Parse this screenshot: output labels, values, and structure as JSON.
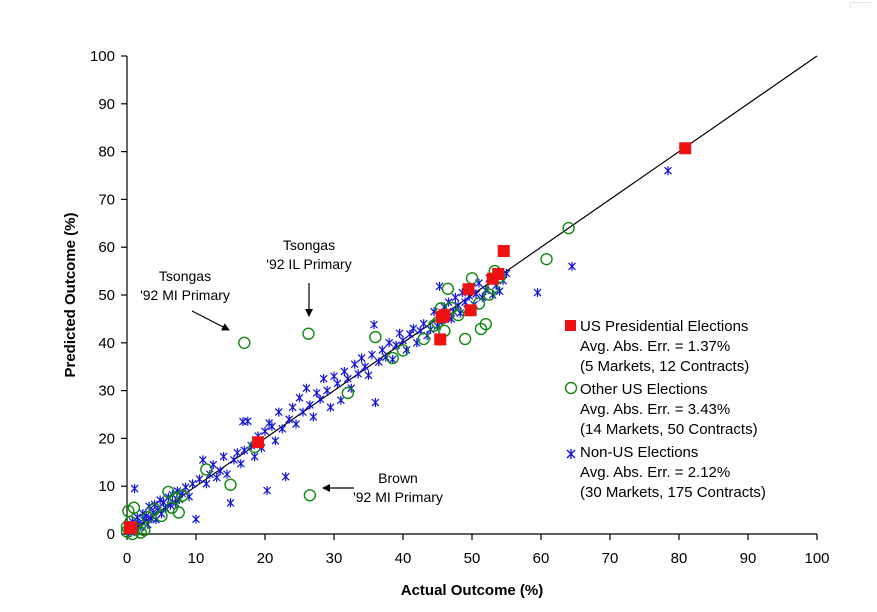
{
  "chart_data": {
    "type": "scatter",
    "title": "",
    "xlabel": "Actual Outcome (%)",
    "ylabel": "Predicted Outcome (%)",
    "xlim": [
      0,
      100
    ],
    "ylim": [
      0,
      100
    ],
    "xticks": [
      "0",
      "10",
      "20",
      "30",
      "40",
      "50",
      "60",
      "70",
      "80",
      "90",
      "100"
    ],
    "yticks": [
      "0",
      "10",
      "20",
      "30",
      "40",
      "50",
      "60",
      "70",
      "80",
      "90",
      "100"
    ],
    "grid": false,
    "legend_position": "right",
    "reference_line": {
      "x": [
        0,
        100
      ],
      "y": [
        0,
        100
      ],
      "color": "#000000"
    },
    "series": [
      {
        "name": "US Presidential Elections",
        "stat": "Avg. Abs. Err. = 1.37%",
        "markets": "(5 Markets, 12 Contracts)",
        "marker": "filled-square",
        "color": "#ee1111",
        "points": [
          [
            0.4,
            1.4
          ],
          [
            0.6,
            1.2
          ],
          [
            19,
            19.2
          ],
          [
            45.4,
            40.7
          ],
          [
            45.6,
            45.4
          ],
          [
            46,
            45.8
          ],
          [
            49.5,
            51.2
          ],
          [
            49.8,
            46.8
          ],
          [
            53,
            53.4
          ],
          [
            53.8,
            54.4
          ],
          [
            54.6,
            59.2
          ],
          [
            80.9,
            80.7
          ]
        ]
      },
      {
        "name": "Other US Elections",
        "stat": "Avg. Abs. Err. = 3.43%",
        "markets": "(14 Markets, 50 Contracts)",
        "marker": "open-circle",
        "color": "#118811",
        "points": [
          [
            0,
            0.5
          ],
          [
            0,
            1.5
          ],
          [
            0.2,
            4.8
          ],
          [
            0.5,
            2.5
          ],
          [
            0.8,
            0
          ],
          [
            1,
            5.5
          ],
          [
            1.5,
            1
          ],
          [
            2,
            0.3
          ],
          [
            2.5,
            0.8
          ],
          [
            3,
            3.5
          ],
          [
            4,
            5.2
          ],
          [
            5,
            3.8
          ],
          [
            6,
            8.8
          ],
          [
            6.5,
            5.5
          ],
          [
            7,
            7.5
          ],
          [
            7.5,
            4.5
          ],
          [
            8,
            8
          ],
          [
            11.5,
            13.5
          ],
          [
            15,
            10.3
          ],
          [
            17,
            40
          ],
          [
            18.5,
            18.2
          ],
          [
            26.3,
            41.9
          ],
          [
            26.5,
            8.1
          ],
          [
            32,
            29.5
          ],
          [
            36,
            41.2
          ],
          [
            38.5,
            36.8
          ],
          [
            40,
            38.4
          ],
          [
            43,
            40.8
          ],
          [
            44.5,
            43.6
          ],
          [
            45,
            44.2
          ],
          [
            45.5,
            47.2
          ],
          [
            46,
            42.5
          ],
          [
            46.5,
            51.3
          ],
          [
            47,
            47.3
          ],
          [
            48,
            45.8
          ],
          [
            49,
            40.8
          ],
          [
            50,
            53.5
          ],
          [
            51,
            48.2
          ],
          [
            51.3,
            42.9
          ],
          [
            52,
            43.9
          ],
          [
            52.5,
            50.1
          ],
          [
            53,
            51.4
          ],
          [
            53.3,
            55
          ],
          [
            54,
            53.8
          ],
          [
            60.8,
            57.5
          ],
          [
            64,
            64
          ]
        ]
      },
      {
        "name": "Non-US Elections",
        "stat": "Avg. Abs. Err. = 2.12%",
        "markets": "(30 Markets, 175 Contracts)",
        "marker": "asterisk",
        "color": "#1010dd",
        "points": [
          [
            0.2,
            0.5
          ],
          [
            0.4,
            1.8
          ],
          [
            0.6,
            0.3
          ],
          [
            0.8,
            2.6
          ],
          [
            1,
            1
          ],
          [
            1.1,
            9.5
          ],
          [
            1.3,
            0.7
          ],
          [
            1.5,
            3.5
          ],
          [
            1.7,
            2.2
          ],
          [
            2,
            1.5
          ],
          [
            2.3,
            4.3
          ],
          [
            2.5,
            2.8
          ],
          [
            2.8,
            3.8
          ],
          [
            3,
            2
          ],
          [
            3.2,
            5.8
          ],
          [
            3.5,
            3.2
          ],
          [
            3.8,
            4.5
          ],
          [
            4,
            6.2
          ],
          [
            4.2,
            3
          ],
          [
            4.5,
            5
          ],
          [
            4.8,
            7.1
          ],
          [
            5,
            4.2
          ],
          [
            5.3,
            6.6
          ],
          [
            5.6,
            5.4
          ],
          [
            6,
            7.7
          ],
          [
            6.3,
            6
          ],
          [
            6.6,
            8.2
          ],
          [
            7,
            6.5
          ],
          [
            7.3,
            9
          ],
          [
            7.6,
            7.2
          ],
          [
            8,
            8.5
          ],
          [
            8.5,
            9.8
          ],
          [
            9,
            7.8
          ],
          [
            9.5,
            10.5
          ],
          [
            10,
            3.1
          ],
          [
            10.5,
            11.5
          ],
          [
            11,
            15.5
          ],
          [
            11.5,
            10.5
          ],
          [
            12,
            12.5
          ],
          [
            12.5,
            14.5
          ],
          [
            13,
            11.8
          ],
          [
            13.5,
            13.2
          ],
          [
            14,
            16.2
          ],
          [
            14.5,
            12.5
          ],
          [
            15,
            6.5
          ],
          [
            15.5,
            15.5
          ],
          [
            16,
            17
          ],
          [
            16.5,
            14.7
          ],
          [
            16.8,
            23.5
          ],
          [
            17,
            17.5
          ],
          [
            17.5,
            23.6
          ],
          [
            18,
            18.5
          ],
          [
            18.5,
            16.2
          ],
          [
            19,
            20.5
          ],
          [
            19.5,
            18
          ],
          [
            20,
            21.5
          ],
          [
            20.3,
            9.1
          ],
          [
            20.6,
            23.2
          ],
          [
            21,
            22.5
          ],
          [
            21.5,
            19.5
          ],
          [
            22,
            25.5
          ],
          [
            22.5,
            22
          ],
          [
            23,
            12
          ],
          [
            23.5,
            24
          ],
          [
            24,
            26.5
          ],
          [
            24.5,
            23
          ],
          [
            25,
            28.5
          ],
          [
            25.5,
            25.5
          ],
          [
            26,
            30.5
          ],
          [
            26.5,
            27
          ],
          [
            27,
            24.5
          ],
          [
            27.5,
            29.5
          ],
          [
            28,
            28.2
          ],
          [
            28.5,
            32.5
          ],
          [
            29,
            30
          ],
          [
            29.5,
            26.5
          ],
          [
            30,
            33
          ],
          [
            30.5,
            31.5
          ],
          [
            31,
            28
          ],
          [
            31.5,
            34
          ],
          [
            32,
            32.5
          ],
          [
            32.5,
            30.5
          ],
          [
            33,
            35.5
          ],
          [
            33.5,
            33.5
          ],
          [
            34,
            36.8
          ],
          [
            34.5,
            35
          ],
          [
            35,
            33.2
          ],
          [
            35.5,
            37.5
          ],
          [
            35.8,
            43.8
          ],
          [
            36,
            27.5
          ],
          [
            36.5,
            36
          ],
          [
            37,
            38.5
          ],
          [
            37.5,
            37
          ],
          [
            38,
            40
          ],
          [
            38.5,
            36.5
          ],
          [
            39,
            39.5
          ],
          [
            39.5,
            42
          ],
          [
            40,
            40.5
          ],
          [
            40.5,
            38.5
          ],
          [
            41,
            41.8
          ],
          [
            41.5,
            43
          ],
          [
            42,
            40
          ],
          [
            42.5,
            42.5
          ],
          [
            43,
            44
          ],
          [
            43.5,
            41.5
          ],
          [
            44,
            42.8
          ],
          [
            44.5,
            46.5
          ],
          [
            45,
            43.5
          ],
          [
            45.3,
            51.8
          ],
          [
            45.6,
            44.7
          ],
          [
            46,
            47.5
          ],
          [
            46.3,
            46
          ],
          [
            46.6,
            48.5
          ],
          [
            47,
            45
          ],
          [
            47.3,
            46.5
          ],
          [
            47.6,
            49.5
          ],
          [
            48,
            47.8
          ],
          [
            48.3,
            46.2
          ],
          [
            48.6,
            50.5
          ],
          [
            49,
            48.5
          ],
          [
            49.3,
            47
          ],
          [
            49.6,
            49.8
          ],
          [
            50,
            51.5
          ],
          [
            50.3,
            48
          ],
          [
            50.6,
            50.2
          ],
          [
            51,
            52.5
          ],
          [
            51.5,
            49.5
          ],
          [
            52,
            51
          ],
          [
            52.5,
            53.5
          ],
          [
            53,
            50
          ],
          [
            53.5,
            52
          ],
          [
            54,
            50.8
          ],
          [
            54.5,
            53
          ],
          [
            55,
            54.5
          ],
          [
            59.5,
            50.5
          ],
          [
            64.5,
            56
          ],
          [
            78.4,
            76
          ]
        ]
      }
    ],
    "annotations": [
      {
        "lines": [
          "Tsongas",
          "'92 MI Primary"
        ],
        "points_to": [
          17,
          40
        ]
      },
      {
        "lines": [
          "Tsongas",
          "'92 IL Primary"
        ],
        "points_to": [
          26.3,
          41.9
        ]
      },
      {
        "lines": [
          "Brown",
          "'92 MI Primary"
        ],
        "points_to": [
          26.5,
          8.1
        ]
      }
    ]
  }
}
